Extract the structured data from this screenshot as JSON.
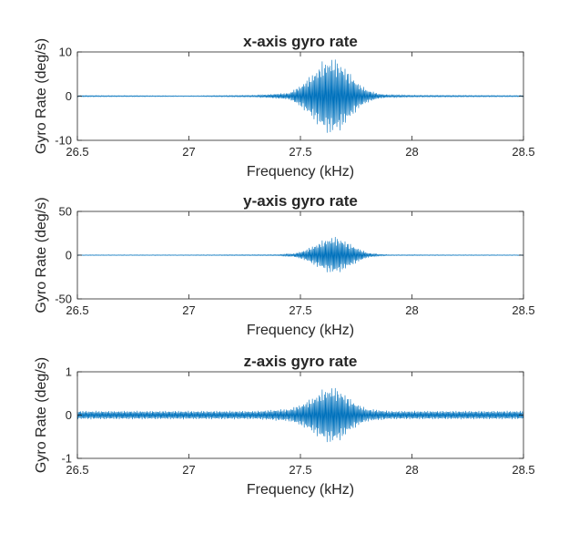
{
  "chart_data": [
    {
      "type": "line",
      "title": "x-axis gyro rate",
      "xlabel": "Frequency (kHz)",
      "ylabel": "Gyro Rate (deg/s)",
      "xlim": [
        26.5,
        28.5
      ],
      "ylim": [
        -10,
        10
      ],
      "xticks": [
        "26.5",
        "27",
        "27.5",
        "28",
        "28.5"
      ],
      "yticks": [
        "10",
        "0",
        "-10"
      ],
      "color": "#0072BD",
      "grid": false,
      "points": [
        [
          26.5,
          0.15
        ],
        [
          27.0,
          0.1
        ],
        [
          27.3,
          0.2
        ],
        [
          27.45,
          0.8
        ],
        [
          27.5,
          2.5
        ],
        [
          27.55,
          5.0
        ],
        [
          27.6,
          8.0
        ],
        [
          27.64,
          9.0
        ],
        [
          27.68,
          8.0
        ],
        [
          27.72,
          5.5
        ],
        [
          27.76,
          3.0
        ],
        [
          27.8,
          1.5
        ],
        [
          27.85,
          0.6
        ],
        [
          27.9,
          0.3
        ],
        [
          28.0,
          0.2
        ],
        [
          28.5,
          0.15
        ]
      ],
      "noise_floor": 0.1
    },
    {
      "type": "line",
      "title": "y-axis gyro rate",
      "xlabel": "Frequency (kHz)",
      "ylabel": "Gyro Rate (deg/s)",
      "xlim": [
        26.5,
        28.5
      ],
      "ylim": [
        -50,
        50
      ],
      "xticks": [
        "26.5",
        "27",
        "27.5",
        "28",
        "28.5"
      ],
      "yticks": [
        "50",
        "0",
        "-50"
      ],
      "color": "#0072BD",
      "grid": false,
      "points": [
        [
          26.5,
          0.4
        ],
        [
          27.0,
          0.4
        ],
        [
          27.4,
          0.6
        ],
        [
          27.47,
          2.0
        ],
        [
          27.52,
          6.0
        ],
        [
          27.57,
          13.0
        ],
        [
          27.62,
          20.0
        ],
        [
          27.65,
          22.0
        ],
        [
          27.68,
          20.0
        ],
        [
          27.72,
          14.0
        ],
        [
          27.76,
          8.0
        ],
        [
          27.8,
          3.0
        ],
        [
          27.85,
          1.0
        ],
        [
          27.9,
          0.5
        ],
        [
          28.5,
          0.4
        ]
      ],
      "noise_floor": 0.3
    },
    {
      "type": "line",
      "title": "z-axis gyro rate",
      "xlabel": "Frequency (kHz)",
      "ylabel": "Gyro Rate (deg/s)",
      "xlim": [
        26.5,
        28.5
      ],
      "ylim": [
        -1,
        1
      ],
      "xticks": [
        "26.5",
        "27",
        "27.5",
        "28",
        "28.5"
      ],
      "yticks": [
        "1",
        "0",
        "-1"
      ],
      "color": "#0072BD",
      "grid": false,
      "points": [
        [
          26.5,
          0.1
        ],
        [
          27.0,
          0.1
        ],
        [
          27.3,
          0.1
        ],
        [
          27.45,
          0.15
        ],
        [
          27.5,
          0.25
        ],
        [
          27.55,
          0.4
        ],
        [
          27.6,
          0.6
        ],
        [
          27.64,
          0.68
        ],
        [
          27.68,
          0.6
        ],
        [
          27.72,
          0.4
        ],
        [
          27.76,
          0.25
        ],
        [
          27.8,
          0.15
        ],
        [
          27.9,
          0.1
        ],
        [
          28.5,
          0.1
        ]
      ],
      "noise_floor": 0.1
    }
  ]
}
